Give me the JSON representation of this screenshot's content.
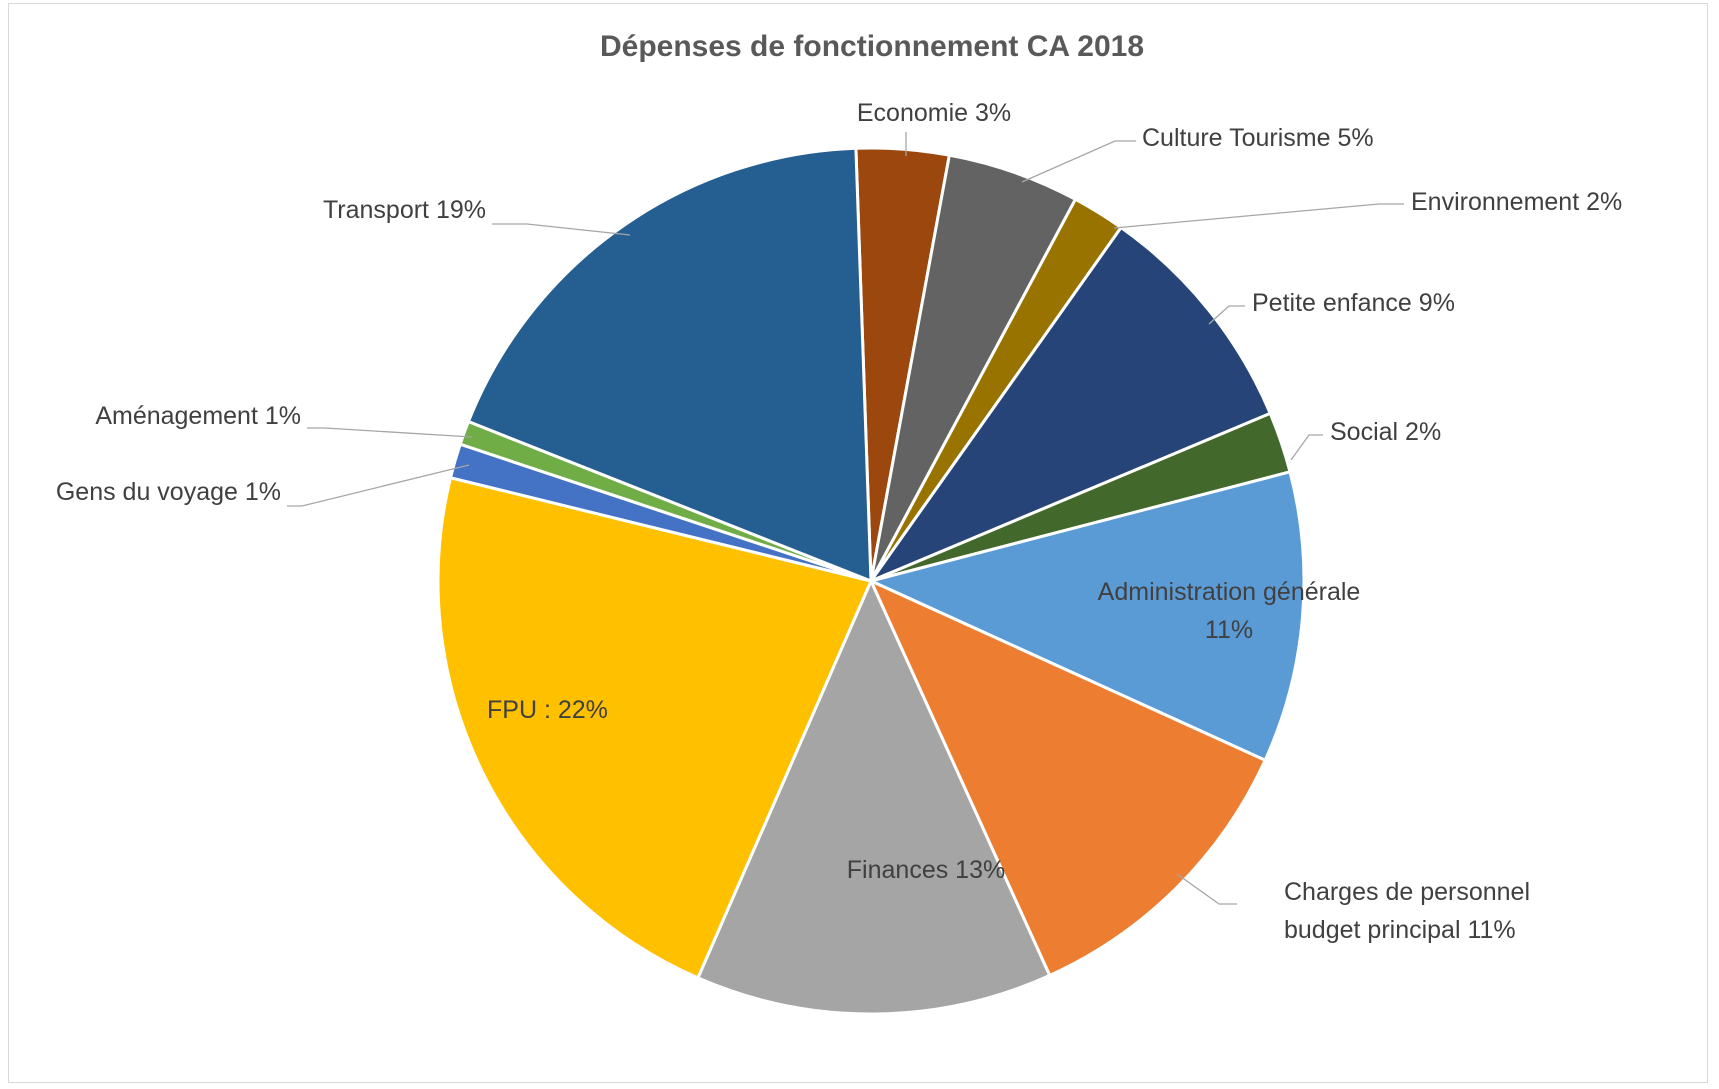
{
  "chart_data": {
    "type": "pie",
    "title": "Dépenses de fonctionnement CA 2018",
    "start_angle_deg": -2,
    "slices": [
      {
        "name": "Economie",
        "value": 3.5,
        "color": "#9c470e",
        "label_lines": [
          "Economie 3%"
        ]
      },
      {
        "name": "Culture Tourisme",
        "value": 5,
        "color": "#636363",
        "label_lines": [
          "Culture Tourisme 5%"
        ]
      },
      {
        "name": "Environnement",
        "value": 2,
        "color": "#987300",
        "label_lines": [
          "Environnement 2%"
        ]
      },
      {
        "name": "Petite enfance",
        "value": 9,
        "color": "#264478",
        "label_lines": [
          "Petite enfance 9%"
        ]
      },
      {
        "name": "Social",
        "value": 2.3,
        "color": "#43682b",
        "label_lines": [
          "Social 2%"
        ]
      },
      {
        "name": "Administration générale",
        "value": 11,
        "color": "#5b9bd5",
        "label_lines": [
          "Administration générale",
          "11%"
        ]
      },
      {
        "name": "Charges de personnel budget principal",
        "value": 11.6,
        "color": "#ed7d31",
        "label_lines": [
          "Charges de personnel",
          "budget principal 11%"
        ]
      },
      {
        "name": "Finances",
        "value": 13.5,
        "color": "#a5a5a5",
        "label_lines": [
          "Finances 13%"
        ]
      },
      {
        "name": "FPU",
        "value": 22.6,
        "color": "#ffc000",
        "label_lines": [
          "FPU  : 22%"
        ]
      },
      {
        "name": "Gens du voyage",
        "value": 1.3,
        "color": "#4472c4",
        "label_lines": [
          "Gens du voyage 1%"
        ]
      },
      {
        "name": "Aménagement",
        "value": 0.9,
        "color": "#70ad47",
        "label_lines": [
          "Aménagement 1%"
        ]
      },
      {
        "name": "Transport",
        "value": 18.7,
        "color": "#255e91",
        "label_lines": [
          "Transport 19%"
        ]
      }
    ]
  }
}
